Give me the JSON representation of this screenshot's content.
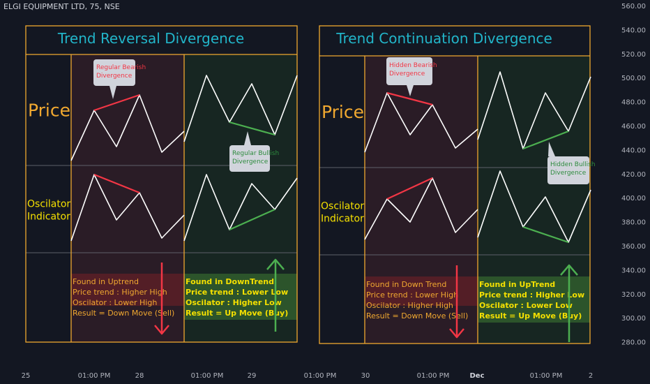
{
  "header": {
    "symbol": "ELGI EQUIPMENT LTD, 75, NSE"
  },
  "chart_data": {
    "type": "line",
    "y_axis": {
      "ticks": [
        "560.00",
        "540.00",
        "520.00",
        "500.00",
        "480.00",
        "460.00",
        "440.00",
        "420.00",
        "400.00",
        "380.00",
        "360.00",
        "340.00",
        "320.00",
        "300.00",
        "280.00"
      ]
    },
    "x_axis": {
      "labels": [
        "25",
        "01:00 PM",
        "28",
        "01:00 PM",
        "29",
        "01:00 PM",
        "30",
        "01:00 PM",
        "Dec",
        "01:00 PM",
        "2"
      ]
    },
    "panels": [
      {
        "title": "Trend Reversal  Divergence",
        "price_label": "Price",
        "osc_label_1": "Oscilator",
        "osc_label_2": "Indicator",
        "left_callout": [
          "Regular Bearish",
          "Divergence"
        ],
        "right_callout": [
          "Regular Bullish",
          "Divergence"
        ],
        "left_info": [
          "Found in Uptrend",
          "Price trend : Higher High",
          "Oscilator : Lower High",
          "Result = Down Move (Sell)"
        ],
        "right_info": [
          "Found in DownTrend",
          "Price trend : Lower Low",
          "Oscilator : Higher Low",
          "Result = Up Move (Buy)"
        ]
      },
      {
        "title": "Trend Continuation Divergence",
        "price_label": "Price",
        "osc_label_1": "Oscilator",
        "osc_label_2": "Indicator",
        "left_callout": [
          "Hidden Bearish",
          "Divergence"
        ],
        "right_callout": [
          "Hidden Bullish",
          "Divergence"
        ],
        "left_info": [
          "Found in Down Trend",
          "Price trend : Lower High",
          "Oscilator : Higher High",
          "Result = Down Move (Sell)"
        ],
        "right_info": [
          "Found in UpTrend",
          "Price trend : Higher Low",
          "Oscilator : Lower Low",
          "Result = Up Move (Buy)"
        ]
      }
    ],
    "colors": {
      "bearish": "#f23645",
      "bullish": "#4caf50",
      "title": "#22b5c9",
      "border": "#f0a830",
      "yellow_text": "#f5e000",
      "bear_text": "#f0a830"
    }
  }
}
